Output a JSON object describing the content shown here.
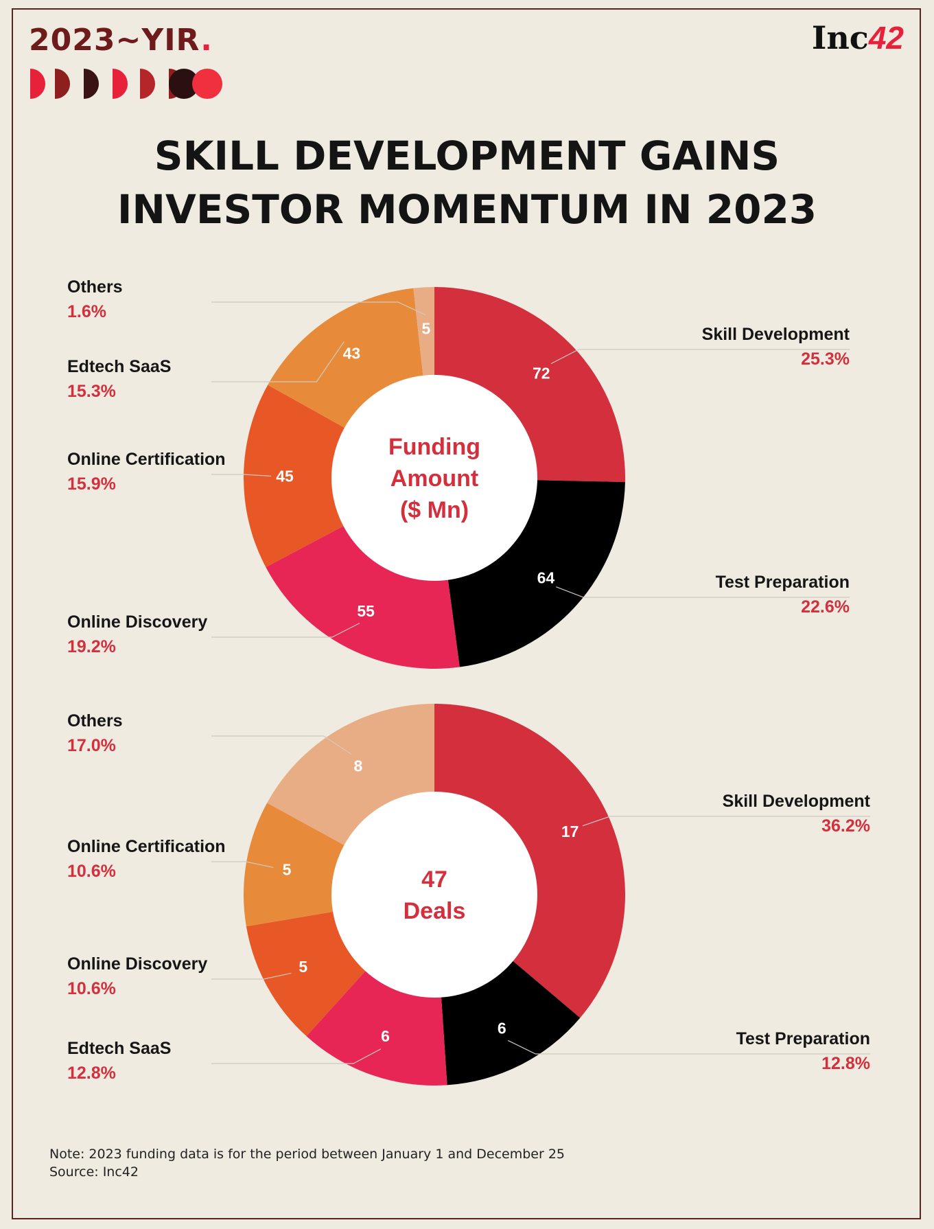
{
  "header": {
    "brand": "2023~YIR",
    "brand_dot": ".",
    "logo_main": "Inc",
    "logo_accent": "42"
  },
  "title_lines": [
    "SKILL DEVELOPMENT GAINS",
    "INVESTOR MOMENTUM IN 2023"
  ],
  "chart_data": [
    {
      "type": "pie",
      "center_label": [
        "Funding",
        "Amount",
        "($ Mn)"
      ],
      "categories": [
        "Skill Development",
        "Test Preparation",
        "Online Discovery",
        "Online Certification",
        "Edtech SaaS",
        "Others"
      ],
      "values": [
        72,
        64,
        55,
        45,
        43,
        5
      ],
      "percentages": [
        "25.3%",
        "22.6%",
        "19.2%",
        "15.9%",
        "15.3%",
        "1.6%"
      ],
      "colors": [
        "#d32f3d",
        "#000000",
        "#e82655",
        "#e85826",
        "#e78b3b",
        "#e8ad84"
      ]
    },
    {
      "type": "pie",
      "center_label": [
        "47",
        "Deals"
      ],
      "categories": [
        "Skill Development",
        "Test Preparation",
        "Edtech SaaS",
        "Online Discovery",
        "Online Certification",
        "Others"
      ],
      "values": [
        17,
        6,
        6,
        5,
        5,
        8
      ],
      "percentages": [
        "36.2%",
        "12.8%",
        "12.8%",
        "10.6%",
        "10.6%",
        "17.0%"
      ],
      "colors": [
        "#d32f3d",
        "#000000",
        "#e82655",
        "#e85826",
        "#e78b3b",
        "#e8ad84"
      ]
    }
  ],
  "footer": {
    "note": "Note: 2023 funding data is for the period between January 1 and December 25",
    "source": "Source: Inc42"
  }
}
